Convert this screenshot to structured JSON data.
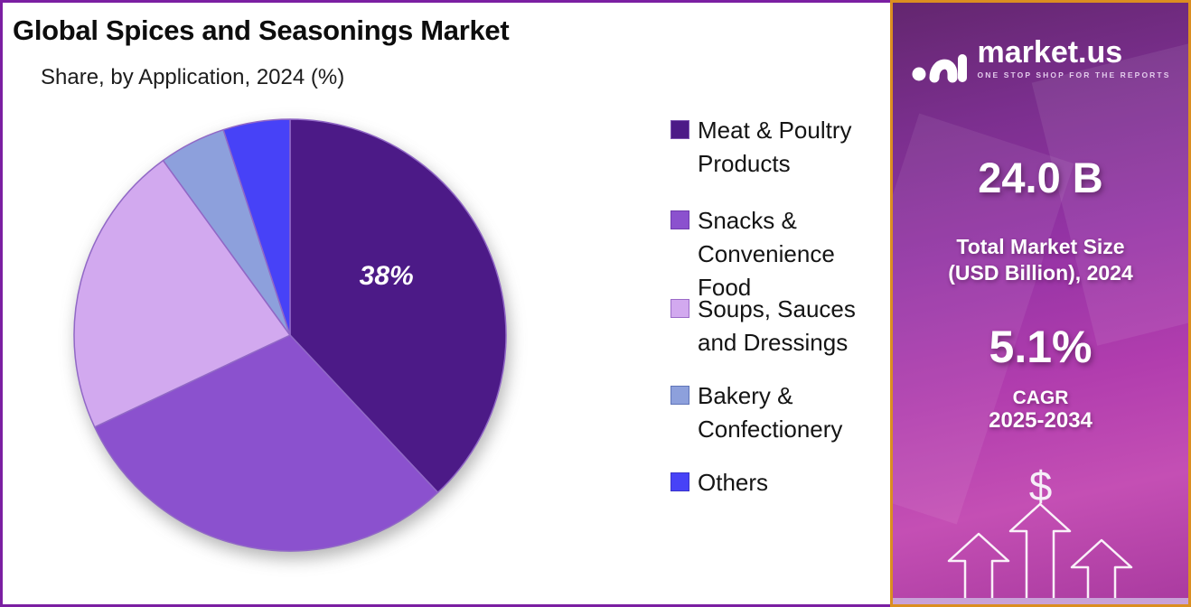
{
  "header": {
    "title": "Global Spices and Seasonings Market",
    "subtitle": "Share, by Application, 2024 (%)"
  },
  "chart_data": {
    "type": "pie",
    "title": "Global Spices and Seasonings Market",
    "subtitle": "Share, by Application, 2024 (%)",
    "unit": "%",
    "start_angle_deg": 0,
    "direction": "clockwise",
    "slice_stroke_color": "#9168C6",
    "slices": [
      {
        "label": "Meat & Poultry Products",
        "value": 38,
        "color": "#4C1A87",
        "swatch_border": "#7B52B0",
        "data_label": "38%",
        "legend_lines": [
          "Meat & Poultry",
          "Products"
        ]
      },
      {
        "label": "Snacks & Convenience Food",
        "value": 30,
        "color": "#8B51CE",
        "swatch_border": "#6F3BAE",
        "data_label": "",
        "legend_lines": [
          "Snacks &",
          "Convenience",
          "Food"
        ]
      },
      {
        "label": "Soups, Sauces and Dressings",
        "value": 22,
        "color": "#D2A9EF",
        "swatch_border": "#9B6BC8",
        "data_label": "",
        "legend_lines": [
          "Soups, Sauces",
          "and Dressings"
        ]
      },
      {
        "label": "Bakery & Confectionery",
        "value": 5,
        "color": "#8DA0DC",
        "swatch_border": "#5F74B8",
        "data_label": "",
        "legend_lines": [
          "Bakery &",
          "Confectionery"
        ]
      },
      {
        "label": "Others",
        "value": 5,
        "color": "#4742F7",
        "swatch_border": "#3A34C8",
        "data_label": "",
        "legend_lines": [
          "Others"
        ]
      }
    ],
    "legend_position": "right"
  },
  "sidebar": {
    "brand": {
      "name": "market.us",
      "tagline": "ONE STOP SHOP FOR THE REPORTS"
    },
    "market_size_value": "24.0 B",
    "market_size_label_line1": "Total Market Size",
    "market_size_label_line2": "(USD Billion), 2024",
    "cagr_value": "5.1%",
    "cagr_label_line1": "CAGR",
    "cagr_label_line2": "2025-2034",
    "dollar_symbol": "$",
    "accent_border_color": "#DB8E20",
    "background_top_color": "#63266F",
    "background_bottom_color": "#B944AE"
  },
  "frame_border_color": "#7B1FA2"
}
